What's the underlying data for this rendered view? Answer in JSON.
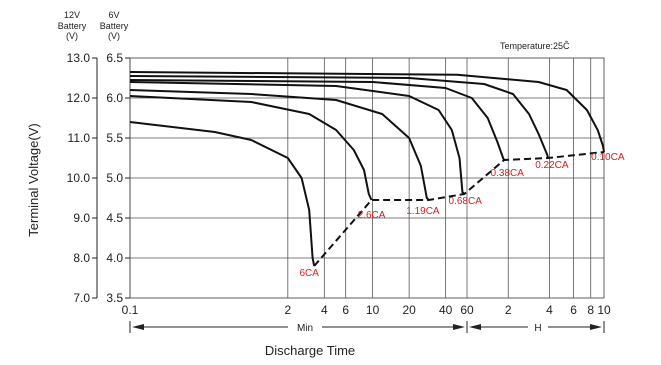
{
  "chart_data": {
    "type": "line",
    "header": {
      "v12_line1": "12V",
      "v12_line2": "Battery",
      "v12_line3": "(V)",
      "v6_line1": "6V",
      "v6_line2": "Battery",
      "v6_line3": "(V)"
    },
    "temperature_note": "Temperature:25Ĉ",
    "ylabel": "Terminal Voltage(V)",
    "xlabel": "Discharge Time",
    "yticks_12v": [
      "13.0",
      "12.0",
      "11.0",
      "10.0",
      "9.0",
      "8.0",
      "7.0"
    ],
    "yticks_6v": [
      "6.5",
      "6.0",
      "5.5",
      "5.0",
      "4.5",
      "4.0",
      "3.5"
    ],
    "ylim_12v": [
      7.0,
      13.0
    ],
    "x_ticks": [
      {
        "label": "0.1",
        "minutes": 0.1
      },
      {
        "label": "2",
        "minutes": 2
      },
      {
        "label": "4",
        "minutes": 4
      },
      {
        "label": "6",
        "minutes": 6
      },
      {
        "label": "10",
        "minutes": 10
      },
      {
        "label": "20",
        "minutes": 20
      },
      {
        "label": "40",
        "minutes": 40
      },
      {
        "label": "60",
        "minutes": 60
      },
      {
        "label": "2",
        "minutes": 120
      },
      {
        "label": "4",
        "minutes": 240
      },
      {
        "label": "6",
        "minutes": 360
      },
      {
        "label": "8",
        "minutes": 480
      },
      {
        "label": "10",
        "minutes": 600
      }
    ],
    "x_range_labels": {
      "minutes": "Min",
      "hours": "H"
    },
    "grid": true,
    "series": [
      {
        "name": "6CA",
        "points": [
          [
            0.1,
            11.4
          ],
          [
            0.5,
            11.15
          ],
          [
            1,
            10.95
          ],
          [
            2,
            10.5
          ],
          [
            2.6,
            10.0
          ],
          [
            3,
            9.2
          ],
          [
            3.2,
            8.0
          ],
          [
            3.3,
            7.8
          ]
        ]
      },
      {
        "name": "2.6CA",
        "points": [
          [
            0.1,
            12.05
          ],
          [
            1,
            11.9
          ],
          [
            3,
            11.6
          ],
          [
            5,
            11.2
          ],
          [
            7,
            10.7
          ],
          [
            8.5,
            10.2
          ],
          [
            9.3,
            9.6
          ],
          [
            9.8,
            9.45
          ]
        ]
      },
      {
        "name": "1.19CA",
        "points": [
          [
            0.1,
            12.2
          ],
          [
            1,
            12.1
          ],
          [
            5,
            11.95
          ],
          [
            12,
            11.6
          ],
          [
            20,
            11.0
          ],
          [
            25,
            10.3
          ],
          [
            28,
            9.5
          ],
          [
            29,
            9.45
          ]
        ]
      },
      {
        "name": "0.68CA",
        "points": [
          [
            0.1,
            12.4
          ],
          [
            5,
            12.3
          ],
          [
            20,
            12.05
          ],
          [
            35,
            11.7
          ],
          [
            45,
            11.2
          ],
          [
            52,
            10.5
          ],
          [
            55,
            9.65
          ],
          [
            57,
            9.6
          ]
        ]
      },
      {
        "name": "0.38CA",
        "points": [
          [
            0.1,
            12.45
          ],
          [
            10,
            12.4
          ],
          [
            40,
            12.25
          ],
          [
            65,
            12.0
          ],
          [
            85,
            11.5
          ],
          [
            100,
            10.9
          ],
          [
            110,
            10.5
          ],
          [
            112,
            10.45
          ]
        ]
      },
      {
        "name": "0.22CA",
        "points": [
          [
            0.1,
            12.55
          ],
          [
            20,
            12.5
          ],
          [
            80,
            12.35
          ],
          [
            130,
            12.1
          ],
          [
            170,
            11.6
          ],
          [
            200,
            11.1
          ],
          [
            230,
            10.6
          ],
          [
            235,
            10.5
          ]
        ]
      },
      {
        "name": "0.10CA",
        "points": [
          [
            0.1,
            12.65
          ],
          [
            50,
            12.58
          ],
          [
            200,
            12.4
          ],
          [
            320,
            12.2
          ],
          [
            450,
            11.7
          ],
          [
            540,
            11.2
          ],
          [
            590,
            10.8
          ],
          [
            600,
            10.65
          ]
        ]
      }
    ],
    "cutoff_line": {
      "style": "dashed",
      "points": [
        [
          3.3,
          7.8
        ],
        [
          9.8,
          9.45
        ],
        [
          29,
          9.45
        ],
        [
          57,
          9.6
        ],
        [
          112,
          10.45
        ],
        [
          235,
          10.5
        ],
        [
          600,
          10.65
        ]
      ]
    },
    "curve_labels": [
      {
        "text": "6CA",
        "at_minutes": 3.0,
        "at_v12": 7.55
      },
      {
        "text": "2.6CA",
        "at_minutes": 9.8,
        "at_v12": 9.0
      },
      {
        "text": "1.19CA",
        "at_minutes": 26,
        "at_v12": 9.1
      },
      {
        "text": "0.68CA",
        "at_minutes": 58,
        "at_v12": 9.35
      },
      {
        "text": "0.38CA",
        "at_minutes": 118,
        "at_v12": 10.05
      },
      {
        "text": "0.22CA",
        "at_minutes": 250,
        "at_v12": 10.25
      },
      {
        "text": "0.10CA",
        "at_minutes": 640,
        "at_v12": 10.45
      }
    ]
  }
}
